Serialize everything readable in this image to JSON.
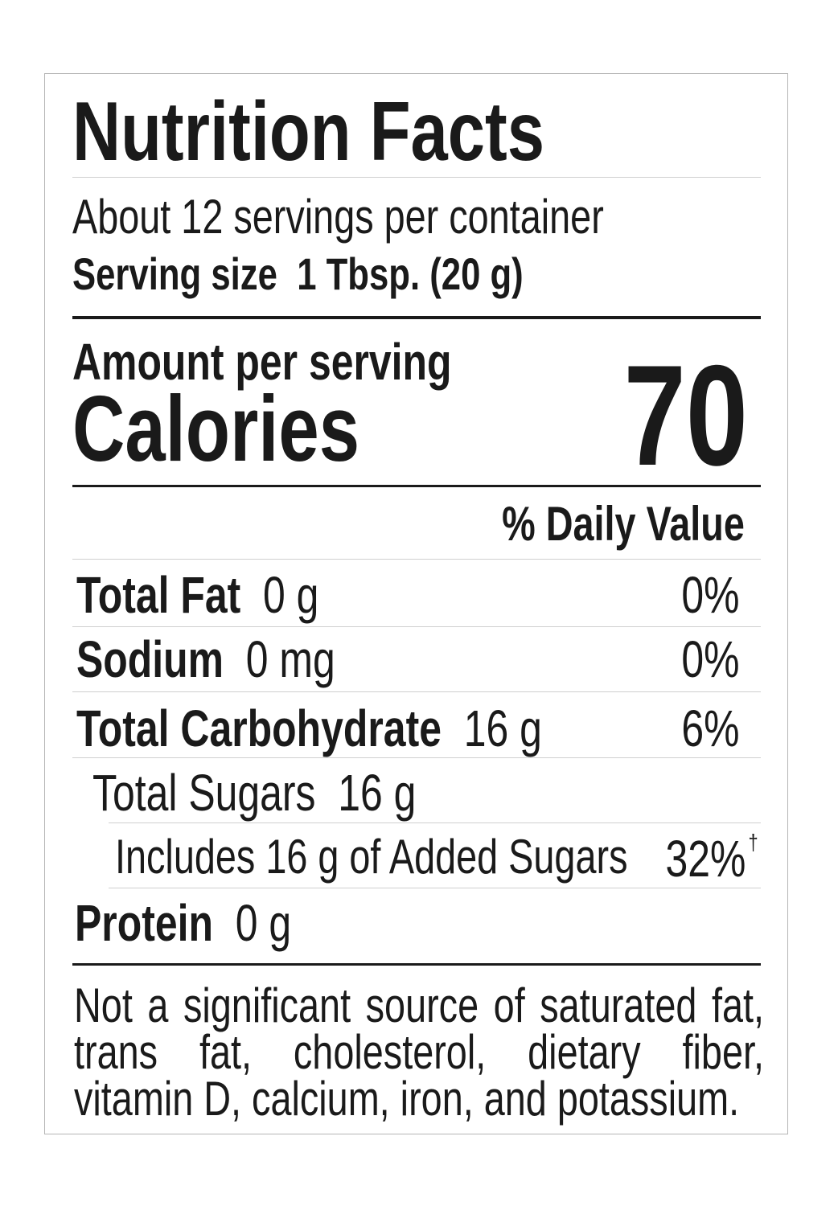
{
  "title": "Nutrition Facts",
  "servings": "About 12 servings per container",
  "serving_size": {
    "label": "Serving size",
    "value": "1 Tbsp. (20 g)"
  },
  "amount_per_serving": "Amount per serving",
  "calories": {
    "label": "Calories",
    "value": "70"
  },
  "daily_value_header": "% Daily Value",
  "rows": [
    {
      "name": "Total Fat",
      "amount": "0 g",
      "dv": "0%"
    },
    {
      "name": "Sodium",
      "amount": "0 mg",
      "dv": "0%"
    },
    {
      "name": "Total Carbohydrate",
      "amount": "16 g",
      "dv": "6%"
    },
    {
      "name": "Total Sugars",
      "amount": "16 g"
    },
    {
      "name": "Includes 16 g of Added Sugars",
      "dv": "32%",
      "note": "†"
    },
    {
      "name": "Protein",
      "amount": "0 g"
    }
  ],
  "footer": "Not a significant source of saturated fat, trans fat, cholesterol, dietary fiber, vitamin D, calcium, iron, and potassium."
}
